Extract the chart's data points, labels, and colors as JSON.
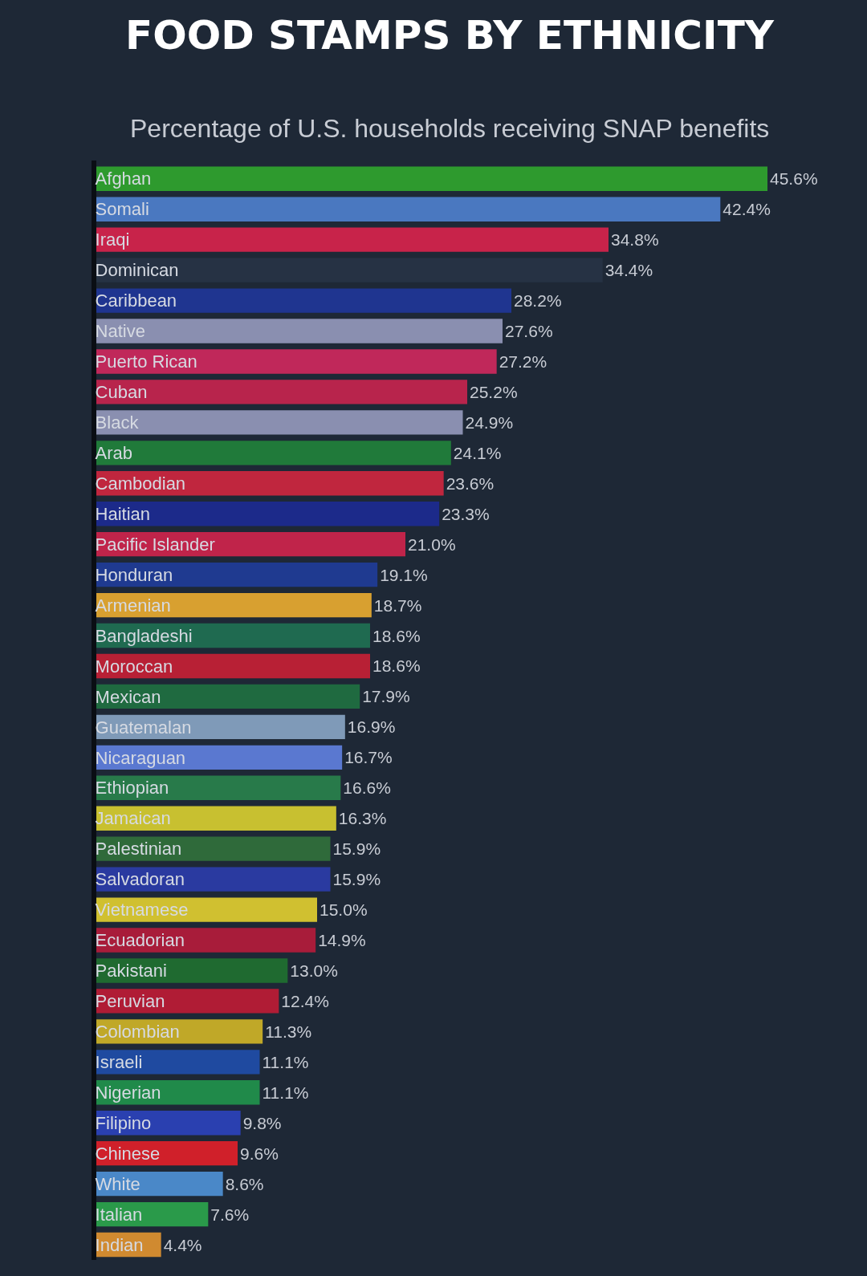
{
  "chart_data": {
    "type": "bar",
    "orientation": "horizontal",
    "title": "FOOD STAMPS BY ETHNICITY",
    "subtitle": "Percentage of U.S. households receiving SNAP benefits",
    "categories": [
      "Afghan",
      "Somali",
      "Iraqi",
      "Dominican",
      "Caribbean",
      "Native",
      "Puerto Rican",
      "Cuban",
      "Black",
      "Arab",
      "Cambodian",
      "Haitian",
      "Pacific Islander",
      "Honduran",
      "Armenian",
      "Bangladeshi",
      "Moroccan",
      "Mexican",
      "Guatemalan",
      "Nicaraguan",
      "Ethiopian",
      "Jamaican",
      "Palestinian",
      "Salvadoran",
      "Vietnamese",
      "Ecuadorian",
      "Pakistani",
      "Peruvian",
      "Colombian",
      "Israeli",
      "Nigerian",
      "Filipino",
      "Chinese",
      "White",
      "Italian",
      "Indian"
    ],
    "values": [
      45.6,
      42.4,
      34.8,
      34.4,
      28.2,
      27.6,
      27.2,
      25.2,
      24.9,
      24.1,
      23.6,
      23.3,
      21.0,
      19.1,
      18.7,
      18.6,
      18.6,
      17.9,
      16.9,
      16.7,
      16.6,
      16.3,
      15.9,
      15.9,
      15.0,
      14.9,
      13.0,
      12.4,
      11.3,
      11.1,
      11.1,
      9.8,
      9.6,
      8.6,
      7.6,
      4.4
    ],
    "value_labels": [
      "45.6%",
      "42.4%",
      "34.8%",
      "34.4%",
      "28.2%",
      "27.6%",
      "27.2%",
      "25.2%",
      "24.9%",
      "24.1%",
      "23.6%",
      "23.3%",
      "21.0%",
      "19.1%",
      "18.7%",
      "18.6%",
      "18.6%",
      "17.9%",
      "16.9%",
      "16.7%",
      "16.6%",
      "16.3%",
      "15.9%",
      "15.9%",
      "15.0%",
      "14.9%",
      "13.0%",
      "12.4%",
      "11.3%",
      "11.1%",
      "11.1%",
      "9.8%",
      "9.6%",
      "8.6%",
      "7.6%",
      "4.4%"
    ],
    "colors": [
      "#2e9a2e",
      "#4a78c0",
      "#c8234a",
      "#263244",
      "#1f3590",
      "#8a8fb0",
      "#c0285a",
      "#b8244c",
      "#8a8fb0",
      "#207a3a",
      "#c0263e",
      "#1c2a8a",
      "#c0244a",
      "#1f3a90",
      "#d8a030",
      "#1f6a50",
      "#b82035",
      "#1f6a40",
      "#7f9ab8",
      "#5a78d0",
      "#287a4a",
      "#c8c030",
      "#2f6a3a",
      "#2a3aa0",
      "#d0c030",
      "#a81c3a",
      "#1f6a30",
      "#b01c35",
      "#c0a828",
      "#1f4aa0",
      "#208a4a",
      "#2a40b0",
      "#d0202a",
      "#4a88c8",
      "#2a9a4a",
      "#d08a30"
    ]
  }
}
